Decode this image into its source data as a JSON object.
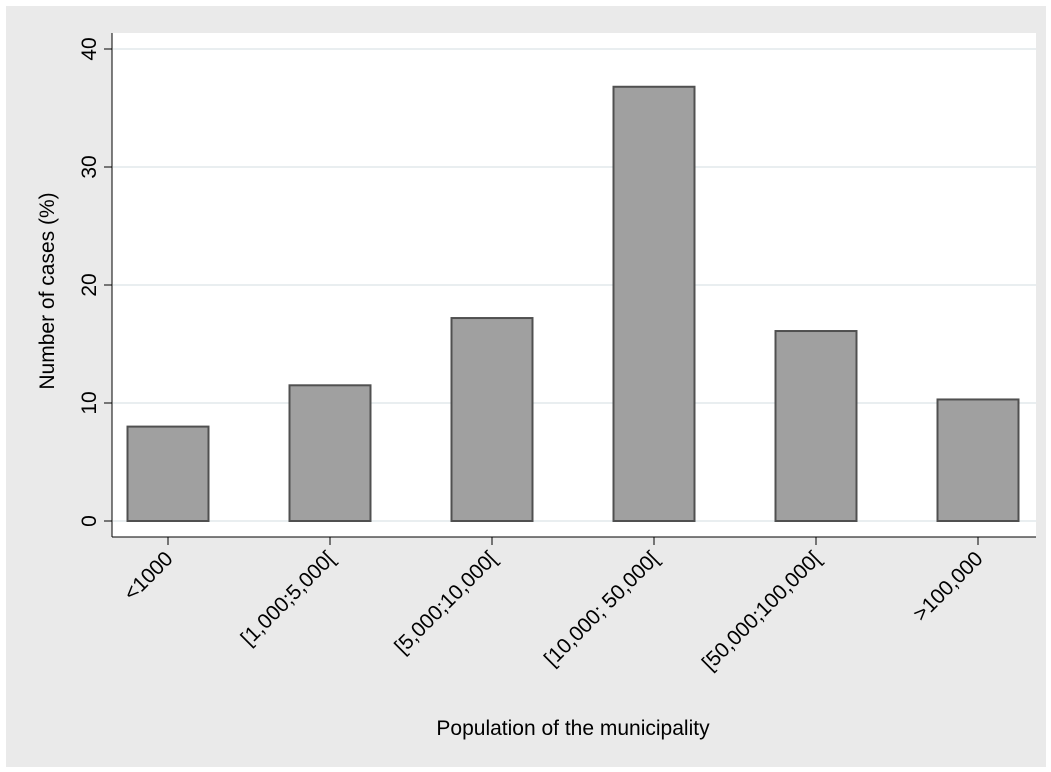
{
  "chart_data": {
    "type": "bar",
    "title": "",
    "xlabel": "Population of the municipality",
    "ylabel": "Number of cases (%)",
    "categories": [
      "<1000",
      "[1,000;5,000[",
      "[5,000;10,000[",
      "[10,000; 50,000[",
      "[50,000;100,000[",
      ">100,000"
    ],
    "values": [
      8.0,
      11.5,
      17.2,
      36.8,
      16.1,
      10.3
    ],
    "ylim": [
      0,
      40
    ],
    "yticks": [
      0,
      10,
      20,
      30,
      40
    ],
    "grid": true,
    "legend": "none",
    "colors": {
      "plot_background": "#ffffff",
      "outer_background": "#eaeaea",
      "bar_fill": "#a0a0a0",
      "bar_outline": "#505050",
      "gridline": "#e9eef0"
    }
  }
}
